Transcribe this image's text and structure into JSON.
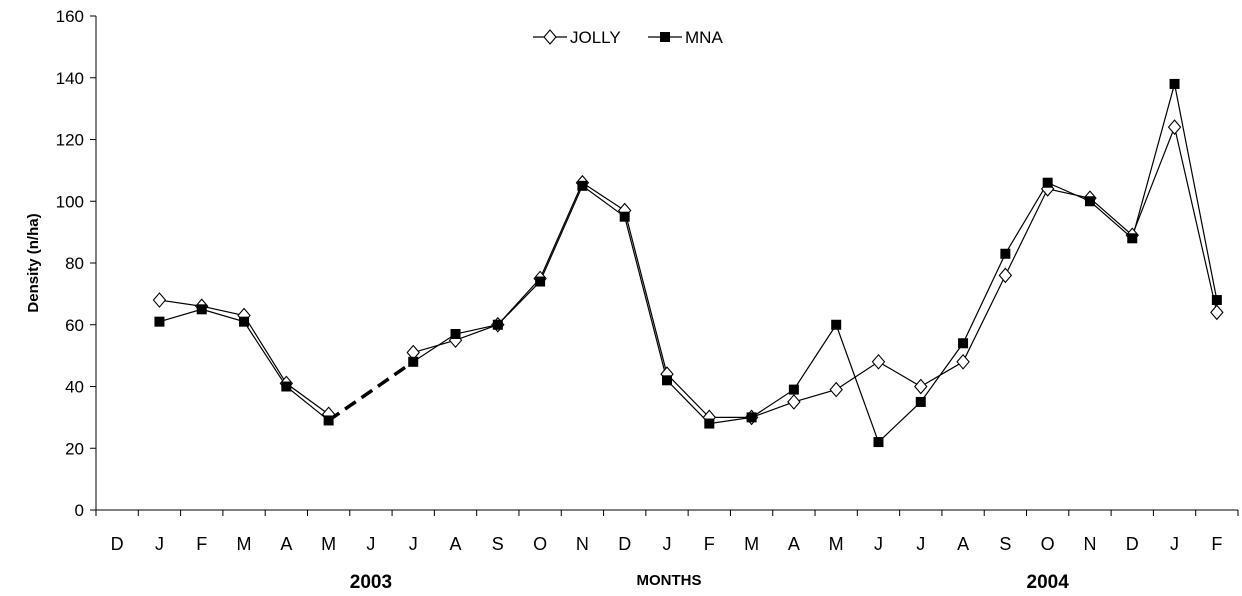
{
  "chart_data": {
    "type": "line",
    "ylabel": "Density (n/ha)",
    "xlabel": "MONTHS",
    "ylim": [
      0,
      160
    ],
    "yticks": [
      0,
      20,
      40,
      60,
      80,
      100,
      120,
      140,
      160
    ],
    "categories": [
      "D",
      "J",
      "F",
      "M",
      "A",
      "M",
      "J",
      "J",
      "A",
      "S",
      "O",
      "N",
      "D",
      "J",
      "F",
      "M",
      "A",
      "M",
      "J",
      "J",
      "A",
      "S",
      "O",
      "N",
      "D",
      "J",
      "F"
    ],
    "year_labels": [
      {
        "text": "2003",
        "at_index": 6
      },
      {
        "text": "2004",
        "at_index": 22
      }
    ],
    "legend": {
      "position": "top-center"
    },
    "series": [
      {
        "name": "JOLLY",
        "marker": "open-diamond",
        "color": "#000000",
        "values": [
          null,
          68,
          66,
          63,
          41,
          31,
          null,
          51,
          55,
          60,
          75,
          106,
          97,
          44,
          30,
          30,
          35,
          39,
          48,
          40,
          48,
          76,
          104,
          101,
          89,
          124,
          64
        ]
      },
      {
        "name": "MNA",
        "marker": "filled-square",
        "color": "#000000",
        "values": [
          null,
          61,
          65,
          61,
          40,
          29,
          null,
          48,
          57,
          60,
          74,
          105,
          95,
          42,
          28,
          30,
          39,
          60,
          22,
          35,
          54,
          83,
          106,
          100,
          88,
          138,
          68
        ]
      }
    ],
    "interpolated_gap": {
      "from_index": 5,
      "to_index": 7,
      "style": "dashed"
    }
  }
}
